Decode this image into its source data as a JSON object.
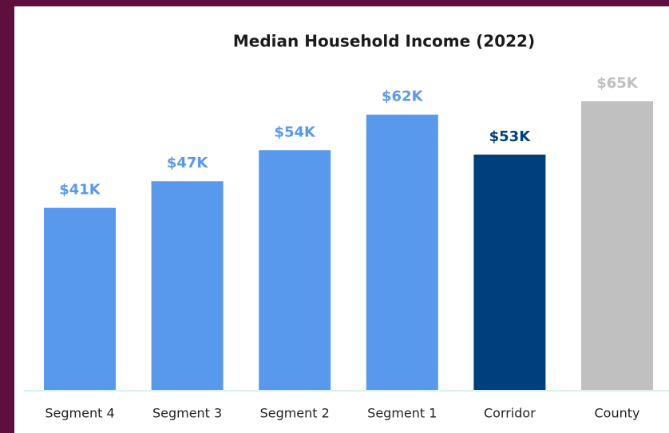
{
  "chart_data": {
    "type": "bar",
    "title": "Median Household Income (2022)",
    "categories": [
      "Segment 4",
      "Segment 3",
      "Segment 2",
      "Segment 1",
      "Corridor",
      "County"
    ],
    "values": [
      41,
      47,
      54,
      62,
      53,
      65
    ],
    "value_labels": [
      "$41K",
      "$47K",
      "$54K",
      "$62K",
      "$53K",
      "$65K"
    ],
    "colors": [
      "#5899ee",
      "#5899ee",
      "#5899ee",
      "#5899ee",
      "#003f7d",
      "#c0c0c0"
    ]
  }
}
